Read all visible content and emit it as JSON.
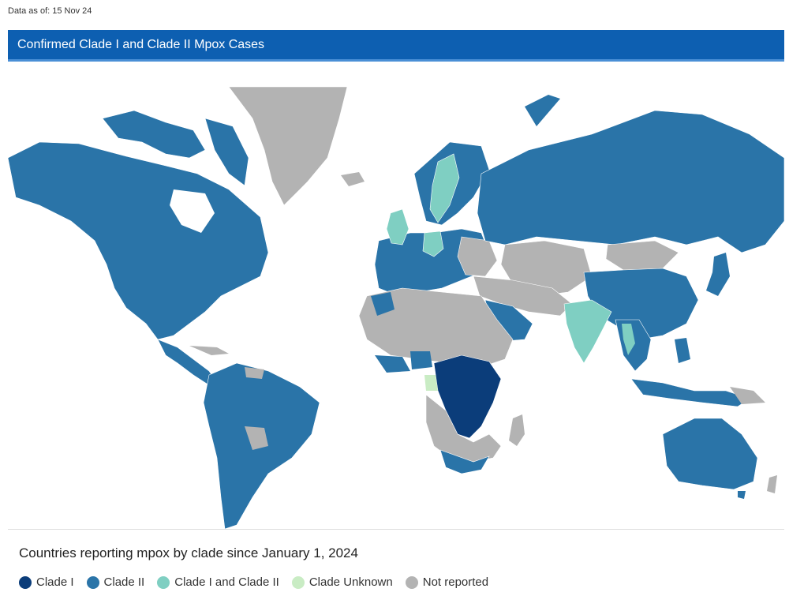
{
  "as_of": "Data as of: 15 Nov 24",
  "header": {
    "title": "Confirmed Clade I and Clade II Mpox Cases"
  },
  "legend": {
    "title": "Countries reporting mpox by clade since January 1, 2024",
    "items": [
      {
        "label": "Clade I",
        "color": "#0b3d7a"
      },
      {
        "label": "Clade II",
        "color": "#2a74a8"
      },
      {
        "label": "Clade I and Clade II",
        "color": "#7fcfc2"
      },
      {
        "label": "Clade Unknown",
        "color": "#c9ecc4"
      },
      {
        "label": "Not reported",
        "color": "#b3b3b3"
      }
    ]
  },
  "colors": {
    "clade1": "#0b3d7a",
    "clade2": "#2a74a8",
    "both": "#7fcfc2",
    "unknown": "#c9ecc4",
    "none": "#b3b3b3"
  },
  "regions": [
    {
      "name": "North America",
      "category": "Clade II"
    },
    {
      "name": "Greenland",
      "category": "Not reported"
    },
    {
      "name": "Central America",
      "category": "Clade II"
    },
    {
      "name": "South America",
      "category": "Clade II"
    },
    {
      "name": "Russia",
      "category": "Clade II"
    },
    {
      "name": "Western Europe",
      "category": "Clade II"
    },
    {
      "name": "Sweden",
      "category": "Clade I and Clade II"
    },
    {
      "name": "Germany",
      "category": "Clade I and Clade II"
    },
    {
      "name": "United Kingdom",
      "category": "Clade I and Clade II"
    },
    {
      "name": "Central Asia",
      "category": "Not reported"
    },
    {
      "name": "Mongolia",
      "category": "Not reported"
    },
    {
      "name": "China",
      "category": "Clade II"
    },
    {
      "name": "India",
      "category": "Clade I and Clade II"
    },
    {
      "name": "Thailand",
      "category": "Clade I and Clade II"
    },
    {
      "name": "Arabian Peninsula",
      "category": "Clade II"
    },
    {
      "name": "North Africa",
      "category": "Not reported"
    },
    {
      "name": "Central Africa",
      "category": "Clade I"
    },
    {
      "name": "Southern Africa",
      "category": "Not reported"
    },
    {
      "name": "South Africa",
      "category": "Clade II"
    },
    {
      "name": "Southeast Asia",
      "category": "Clade II"
    },
    {
      "name": "Australia",
      "category": "Clade II"
    }
  ]
}
